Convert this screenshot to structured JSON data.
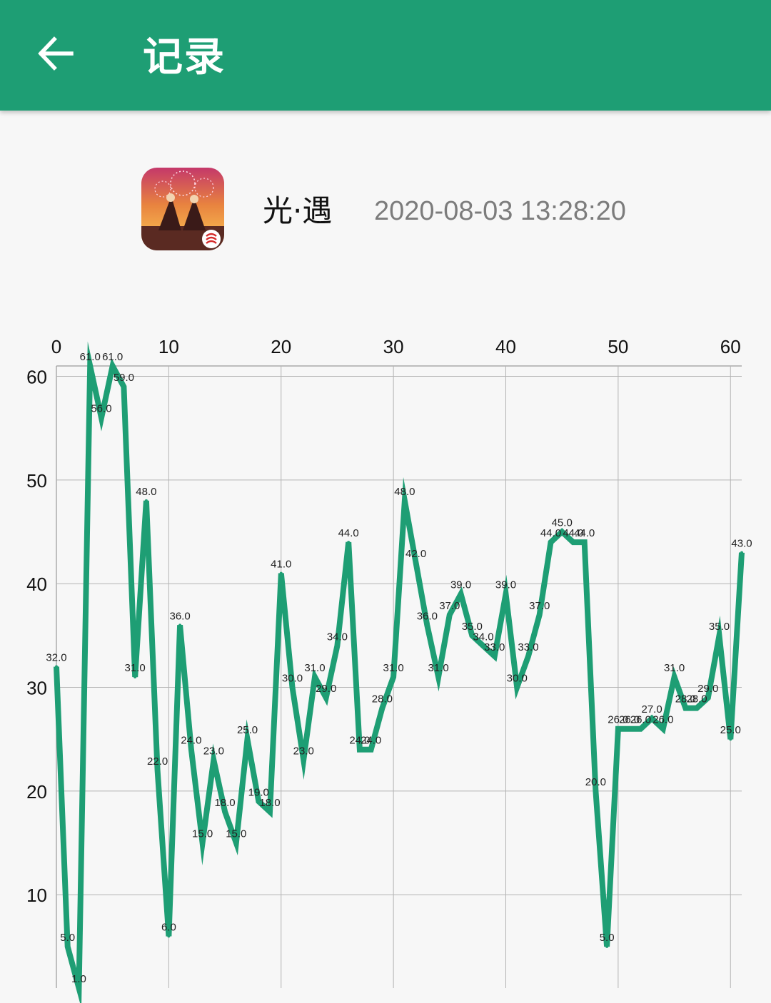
{
  "header": {
    "title": "记录",
    "back_icon": "arrow-left-icon",
    "background": "#1e9e74"
  },
  "app": {
    "name": "光·遇",
    "timestamp": "2020-08-03 13:28:20",
    "icon": "sky-game-icon"
  },
  "chart_data": {
    "type": "line",
    "color": "#1e9e74",
    "grid": true,
    "x_axis_position": "top",
    "xlim": [
      0,
      61
    ],
    "ylim": [
      1,
      61
    ],
    "xticks": [
      "0",
      "10",
      "20",
      "30",
      "40",
      "50",
      "60"
    ],
    "yticks": [
      "10",
      "20",
      "30",
      "40",
      "50",
      "60"
    ],
    "x": [
      0,
      1,
      2,
      3,
      4,
      5,
      6,
      7,
      8,
      9,
      10,
      11,
      12,
      13,
      14,
      15,
      16,
      17,
      18,
      19,
      20,
      21,
      22,
      23,
      24,
      25,
      26,
      27,
      28,
      29,
      30,
      31,
      32,
      33,
      34,
      35,
      36,
      37,
      38,
      39,
      40,
      41,
      42,
      43,
      44,
      45,
      46,
      47,
      48,
      49,
      50,
      51,
      52,
      53,
      54,
      55,
      56,
      57,
      58,
      59,
      60,
      61
    ],
    "values": [
      32,
      5,
      1,
      61,
      56,
      61,
      59,
      31,
      48,
      22,
      6,
      36,
      24,
      15,
      23,
      18,
      15,
      25,
      19,
      18,
      41,
      30,
      23,
      31,
      29,
      34,
      44,
      24,
      24,
      28,
      31,
      48,
      42,
      36,
      31,
      37,
      39,
      35,
      34,
      33,
      39,
      30,
      33,
      37,
      44,
      45,
      44,
      44,
      20,
      5,
      26,
      26,
      26,
      27,
      26,
      31,
      28,
      28,
      29,
      35,
      25,
      43
    ],
    "labels": [
      "32.0",
      "5.0",
      "1.0",
      "61.0",
      "56.0",
      "61.0",
      "59.0",
      "31.0",
      "48.0",
      "22.0",
      "6.0",
      "36.0",
      "24.0",
      "15.0",
      "23.0",
      "18.0",
      "15.0",
      "25.0",
      "19.0",
      "18.0",
      "41.0",
      "30.0",
      "23.0",
      "31.0",
      "29.0",
      "34.0",
      "44.0",
      "24.0",
      "24.0",
      "28.0",
      "31.0",
      "48.0",
      "42.0",
      "36.0",
      "31.0",
      "37.0",
      "39.0",
      "35.0",
      "34.0",
      "33.0",
      "39.0",
      "30.0",
      "33.0",
      "37.0",
      "44.0",
      "45.0",
      "44.0",
      "44.0",
      "20.0",
      "5.0",
      "26.0",
      "26.0",
      "26.0",
      "27.0",
      "26.0",
      "31.0",
      "28.0",
      "28.0",
      "29.0",
      "35.0",
      "25.0",
      "43.0"
    ]
  }
}
